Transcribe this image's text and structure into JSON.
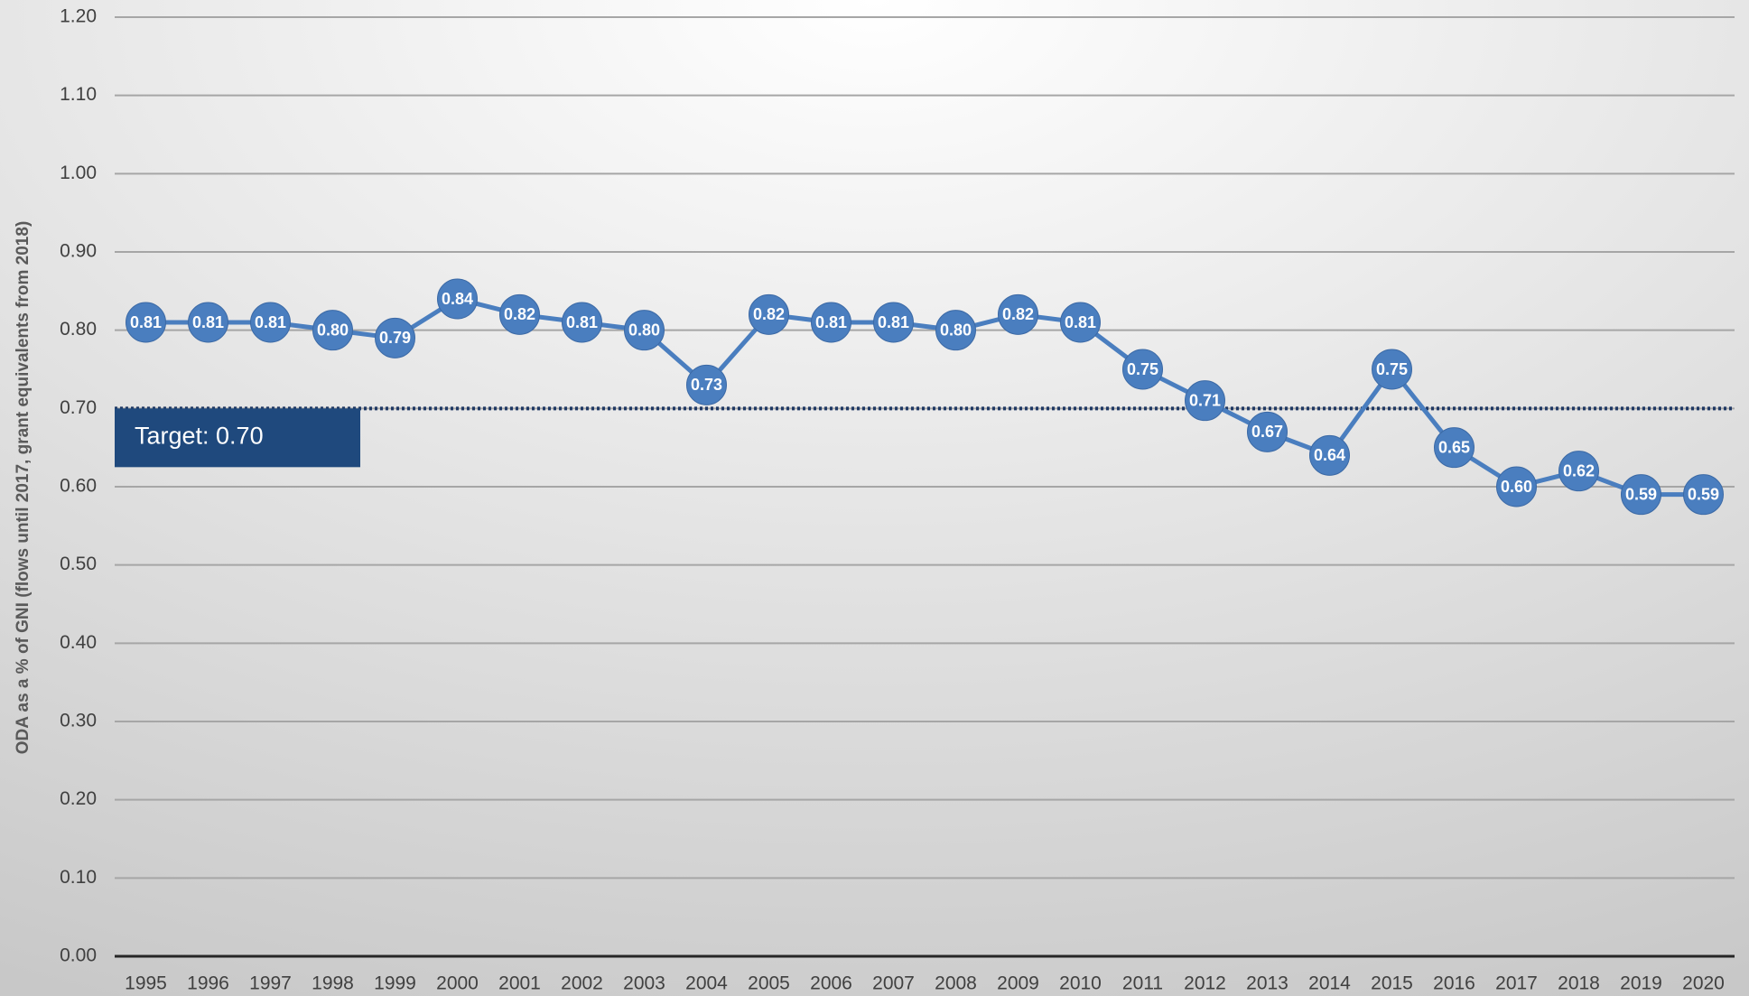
{
  "chart_data": {
    "type": "line",
    "y_label": "ODA as a % of GNI (flows until 2017, grant equivalents from 2018)",
    "categories": [
      "1995",
      "1996",
      "1997",
      "1998",
      "1999",
      "2000",
      "2001",
      "2002",
      "2003",
      "2004",
      "2005",
      "2006",
      "2007",
      "2008",
      "2009",
      "2010",
      "2011",
      "2012",
      "2013",
      "2014",
      "2015",
      "2016",
      "2017",
      "2018",
      "2019",
      "2020"
    ],
    "series": [
      {
        "color": "#4a7ebf",
        "values": [
          0.81,
          0.81,
          0.81,
          0.8,
          0.79,
          0.84,
          0.82,
          0.81,
          0.8,
          0.73,
          0.82,
          0.81,
          0.81,
          0.8,
          0.82,
          0.81,
          0.75,
          0.71,
          0.67,
          0.64,
          0.75,
          0.65,
          0.6,
          0.62,
          0.59,
          0.59
        ],
        "value_labels": [
          "0.81",
          "0.81",
          "0.81",
          "0.80",
          "0.79",
          "0.84",
          "0.82",
          "0.81",
          "0.80",
          "0.73",
          "0.82",
          "0.81",
          "0.81",
          "0.80",
          "0.82",
          "0.81",
          "0.75",
          "0.71",
          "0.67",
          "0.64",
          "0.75",
          "0.65",
          "0.60",
          "0.62",
          "0.59",
          "0.59"
        ]
      }
    ],
    "target": {
      "value": 0.7,
      "label": "Target: 0.70",
      "color": "#1f3864"
    },
    "ylim": [
      0,
      1.2
    ],
    "yticks": [
      {
        "value": 0,
        "label": "0.00"
      },
      {
        "value": 0.1,
        "label": "0.10"
      },
      {
        "value": 0.2,
        "label": "0.20"
      },
      {
        "value": 0.3,
        "label": "0.30"
      },
      {
        "value": 0.4,
        "label": "0.40"
      },
      {
        "value": 0.5,
        "label": "0.50"
      },
      {
        "value": 0.6,
        "label": "0.60"
      },
      {
        "value": 0.7,
        "label": "0.70"
      },
      {
        "value": 0.8,
        "label": "0.80"
      },
      {
        "value": 0.9,
        "label": "0.90"
      },
      {
        "value": 1.0,
        "label": "1.00"
      },
      {
        "value": 1.1,
        "label": "1.10"
      },
      {
        "value": 1.2,
        "label": "1.20"
      }
    ],
    "grid": true
  }
}
